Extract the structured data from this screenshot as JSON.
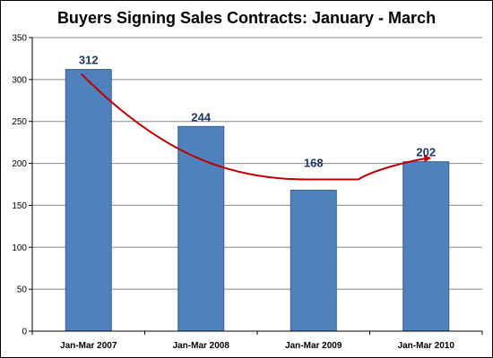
{
  "chart_data": {
    "type": "bar",
    "title": "Buyers Signing Sales Contracts:  January - March",
    "categories": [
      "Jan-Mar 2007",
      "Jan-Mar 2008",
      "Jan-Mar 2009",
      "Jan-Mar 2010"
    ],
    "values": [
      312,
      244,
      168,
      202
    ],
    "data_labels": [
      "312",
      "244",
      "168",
      "202"
    ],
    "ylim": [
      0,
      350
    ],
    "yticks": [
      0,
      50,
      100,
      150,
      200,
      250,
      300,
      350
    ],
    "xlabel": "",
    "ylabel": "",
    "grid": true,
    "legend": "none",
    "colors": {
      "bar": "#4F81BD",
      "bar_border": "#385D8A",
      "grid": "#888888",
      "data_label": "#1F3864",
      "trend_arrow": "#C00000"
    },
    "annotation": "trend arrow from 312 down to 168 then up to 202"
  }
}
